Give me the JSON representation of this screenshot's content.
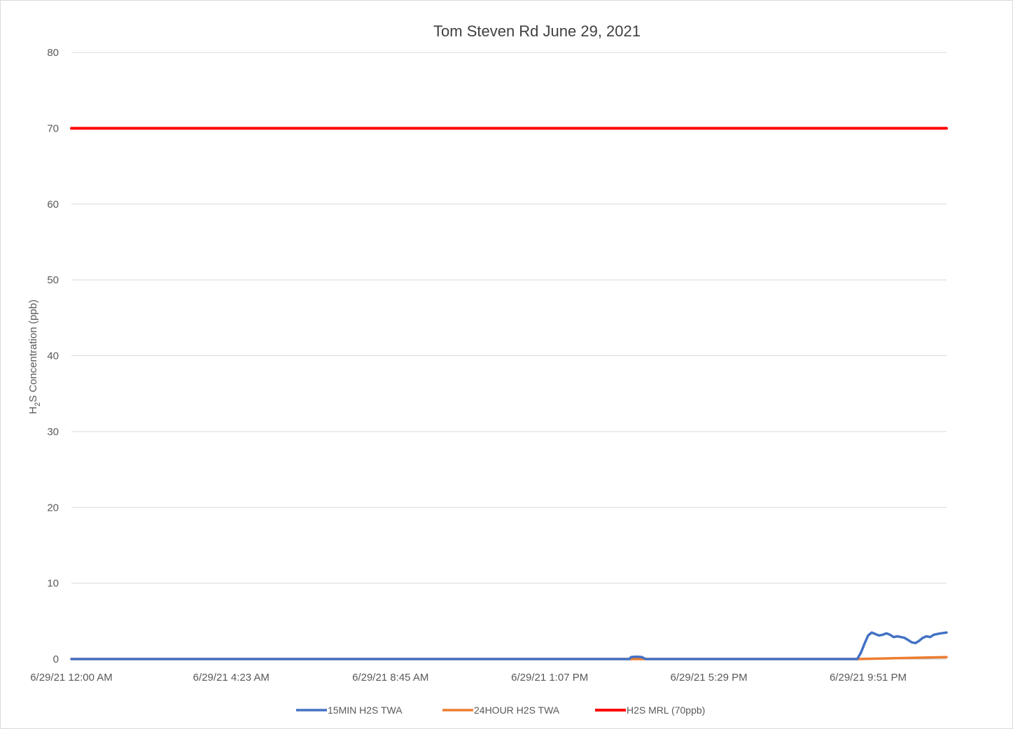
{
  "chart_data": {
    "type": "line",
    "title": "Tom Steven Rd June 29, 2021",
    "ylabel": {
      "main": "H",
      "sub": "2",
      "rest": "S Concentration (ppb)"
    },
    "xlabel": "",
    "ylim": [
      0,
      80
    ],
    "y_ticks": [
      "0",
      "10",
      "20",
      "30",
      "40",
      "50",
      "60",
      "70",
      "80"
    ],
    "y_tick_values": [
      0,
      10,
      20,
      30,
      40,
      50,
      60,
      70,
      80
    ],
    "x_range_hours": [
      0,
      24
    ],
    "x_ticks": [
      {
        "label": "6/29/21 12:00 AM",
        "hour": 0
      },
      {
        "label": "6/29/21 4:23 AM",
        "hour": 4.383
      },
      {
        "label": "6/29/21 8:45 AM",
        "hour": 8.75
      },
      {
        "label": "6/29/21 1:07 PM",
        "hour": 13.117
      },
      {
        "label": "6/29/21 5:29 PM",
        "hour": 17.483
      },
      {
        "label": "6/29/21 9:51 PM",
        "hour": 21.85
      }
    ],
    "grid": "horizontal",
    "legend_position": "bottom",
    "series": [
      {
        "name": "15MIN H2S TWA",
        "color": "#4472C4",
        "x_hours": [
          0,
          15.3,
          15.35,
          15.45,
          15.55,
          15.65,
          15.75,
          21.55,
          21.65,
          21.75,
          21.85,
          21.95,
          22.05,
          22.15,
          22.25,
          22.35,
          22.45,
          22.55,
          22.65,
          22.75,
          22.85,
          22.95,
          23.05,
          23.15,
          23.25,
          23.35,
          23.45,
          23.55,
          23.65,
          23.75,
          23.85,
          24
        ],
        "values": [
          0,
          0,
          0.25,
          0.3,
          0.3,
          0.25,
          0,
          0,
          0.8,
          2.0,
          3.1,
          3.5,
          3.3,
          3.1,
          3.2,
          3.4,
          3.2,
          2.9,
          3.0,
          2.9,
          2.8,
          2.5,
          2.2,
          2.1,
          2.4,
          2.8,
          3.0,
          2.9,
          3.2,
          3.3,
          3.4,
          3.5
        ]
      },
      {
        "name": "24HOUR H2S TWA",
        "color": "#ED7D31",
        "x_hours": [
          0,
          21.55,
          22,
          22.5,
          23,
          23.5,
          24
        ],
        "values": [
          0,
          0,
          0.05,
          0.1,
          0.15,
          0.2,
          0.25
        ]
      },
      {
        "name": "H2S MRL (70ppb)",
        "color": "#FF0000",
        "x_hours": [
          0,
          24
        ],
        "values": [
          70,
          70
        ]
      }
    ]
  }
}
